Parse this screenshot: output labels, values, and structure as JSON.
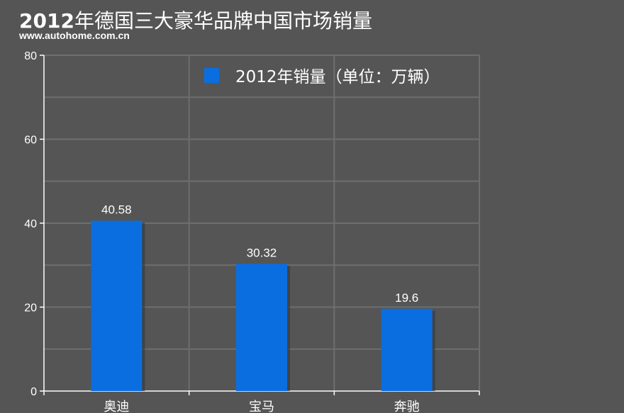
{
  "header": {
    "title_year": "2012",
    "title_rest": "年德国三大豪华品牌中国市场销量",
    "source": "www.autohome.com.cn"
  },
  "colors": {
    "background": "#555555",
    "bar": "#0a6ee0",
    "grid": "#6e6e6e",
    "axis": "#ffffff"
  },
  "chart_data": {
    "type": "bar",
    "categories": [
      "奥迪",
      "宝马",
      "奔驰"
    ],
    "series": [
      {
        "name": "2012年销量（单位：万辆）",
        "values": [
          40.58,
          30.32,
          19.6
        ]
      }
    ],
    "data_labels": [
      "40.58",
      "30.32",
      "19.6"
    ],
    "title": "2012年德国三大豪华品牌中国市场销量",
    "xlabel": "",
    "ylabel": "",
    "ylim": [
      0,
      80
    ],
    "yticks": [
      0,
      20,
      40,
      60,
      80
    ],
    "grid": true,
    "legend_position": "top-right"
  }
}
